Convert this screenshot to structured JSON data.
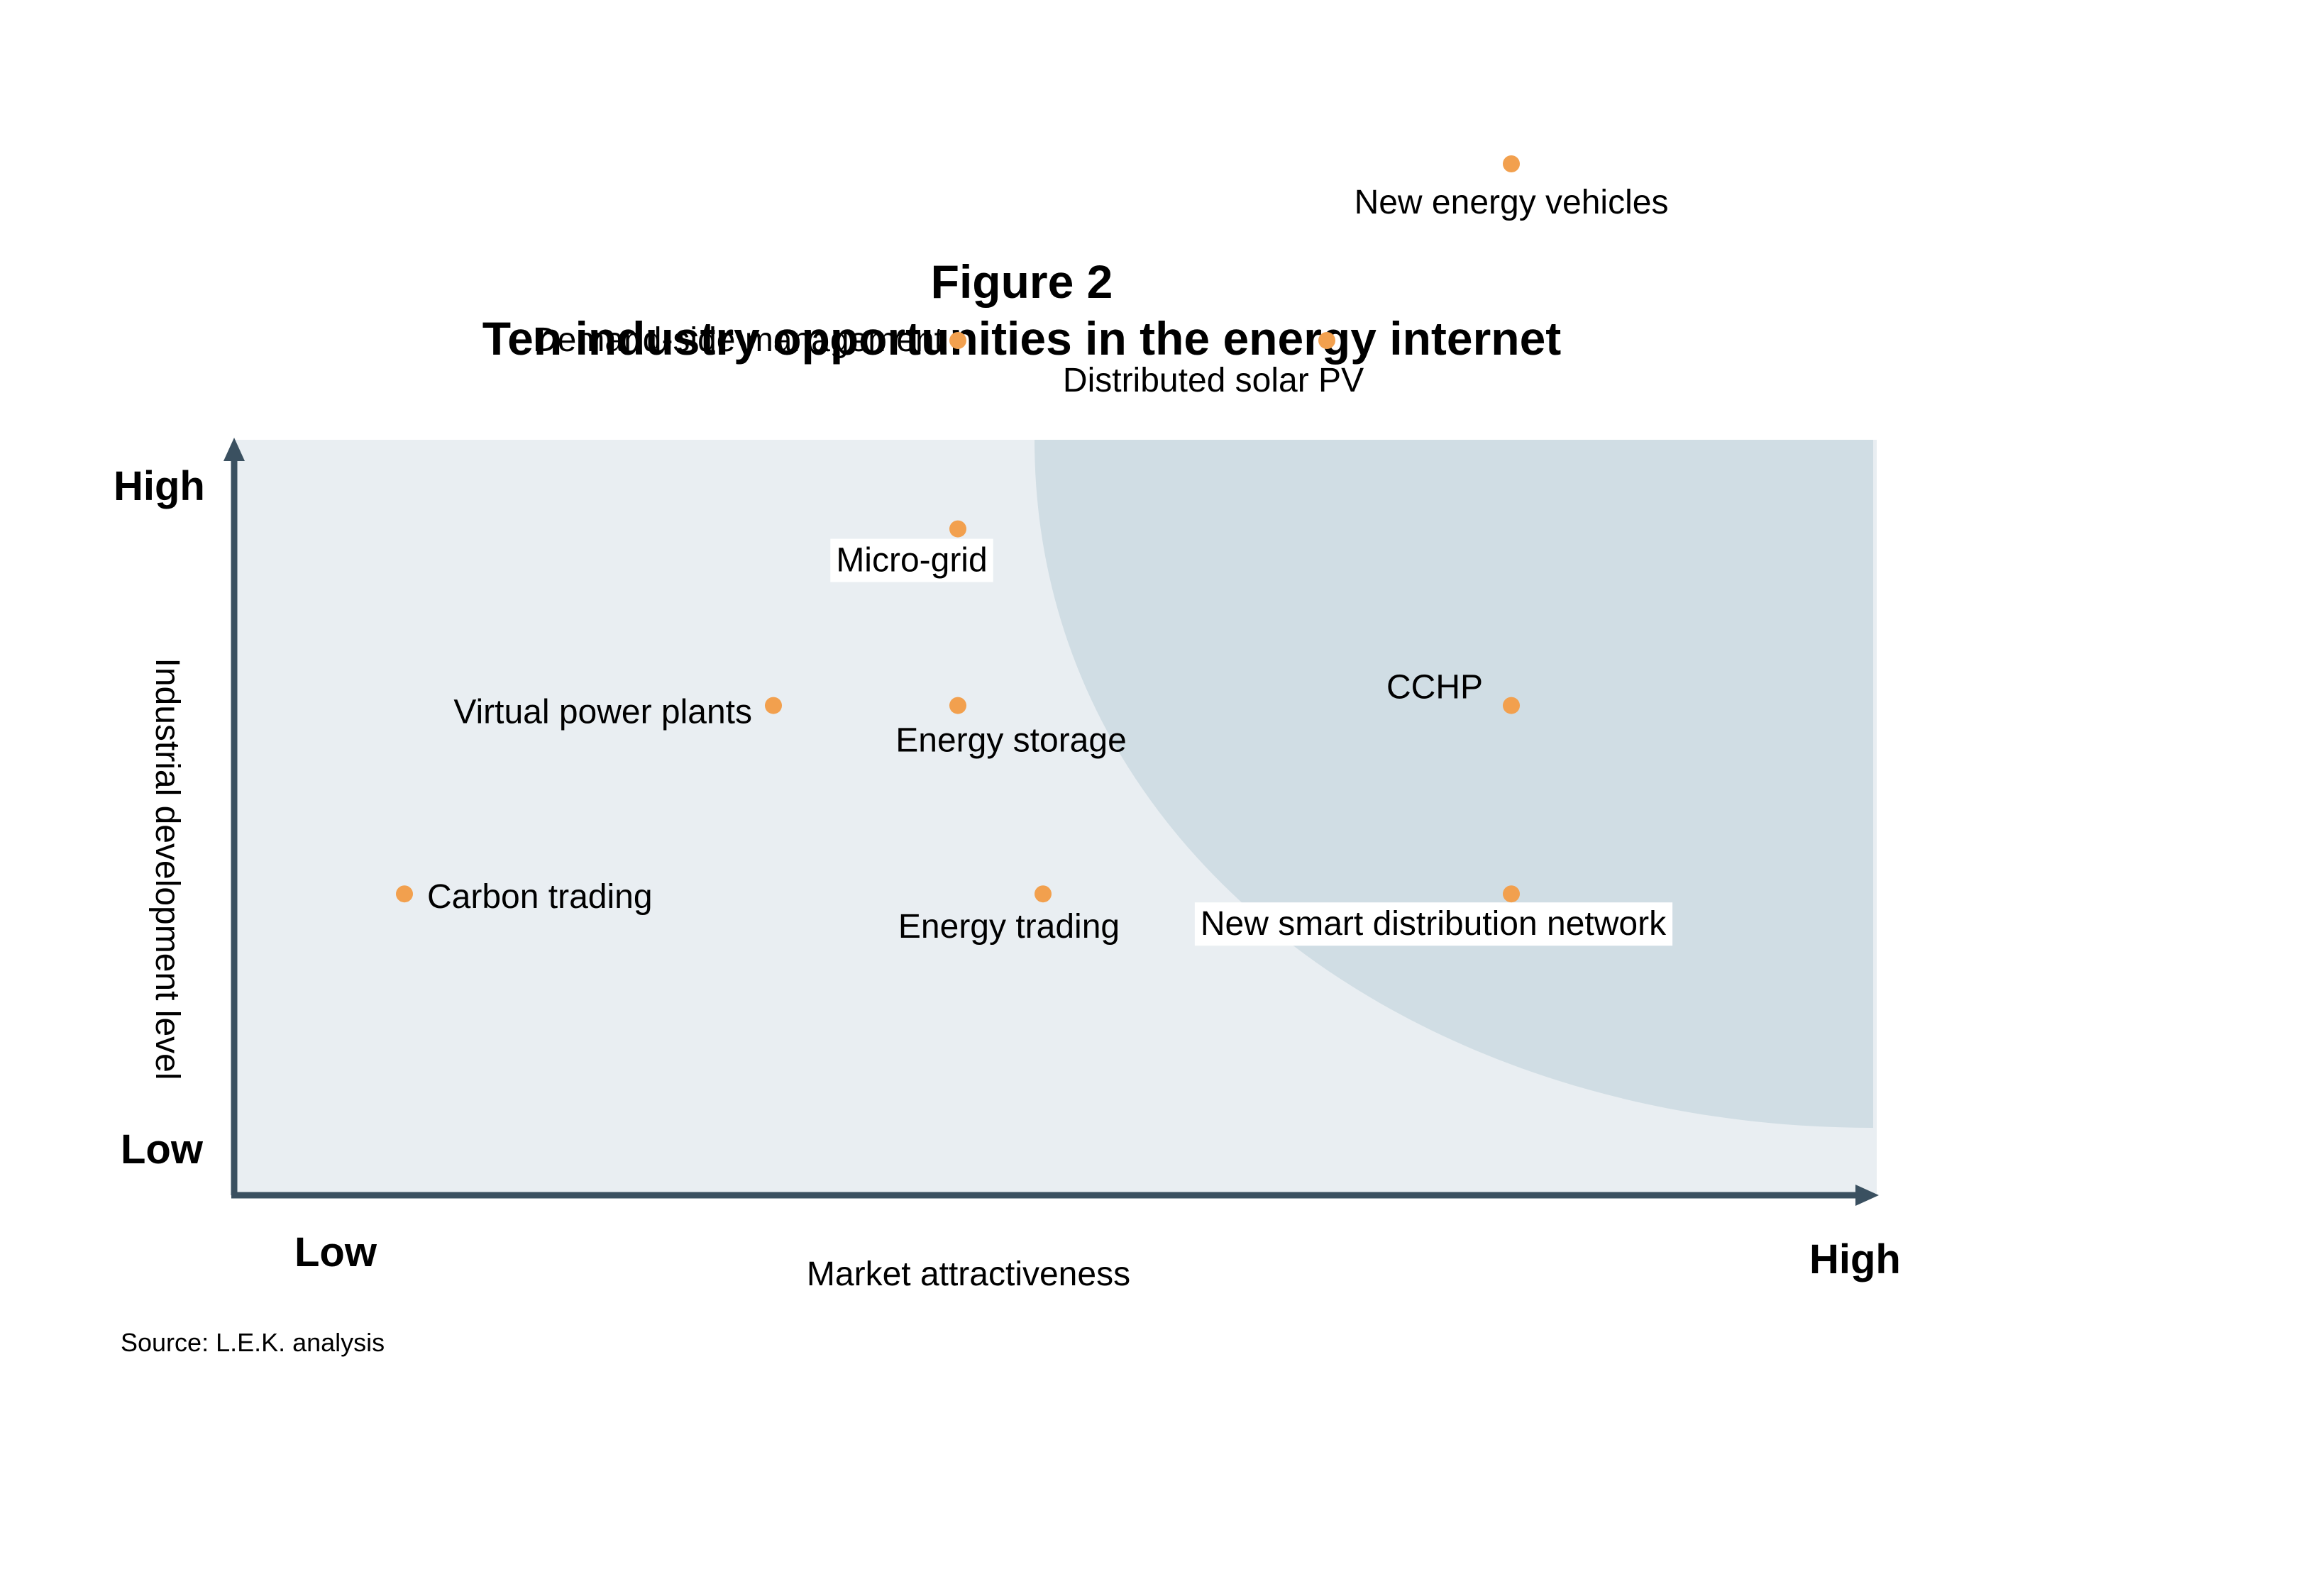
{
  "chart_data": {
    "type": "scatter",
    "title": "Figure 2",
    "subtitle": "Ten industry opportunities in the energy internet",
    "xlabel": "Market attractiveness",
    "ylabel": "Industrial development level",
    "x_axis_ends": {
      "low": "Low",
      "high": "High"
    },
    "y_axis_ends": {
      "low": "Low",
      "high": "High"
    },
    "xlim": [
      0,
      10
    ],
    "ylim": [
      0,
      10
    ],
    "grid": false,
    "source": "Source: L.E.K. analysis",
    "colors": {
      "point": "#F2A04E",
      "plot_background": "#E9EEF2",
      "highlight_region": "#D0DDE4",
      "axis": "#3A5060"
    },
    "points": [
      {
        "label": "New energy vehicles",
        "x": 9.0,
        "y": 9.0
      },
      {
        "label": "Demand-side management",
        "x": 5.1,
        "y": 7.5
      },
      {
        "label": "Distributed solar PV",
        "x": 7.7,
        "y": 7.5
      },
      {
        "label": "Micro-grid",
        "x": 5.1,
        "y": 5.9
      },
      {
        "label": "Virtual power plants",
        "x": 3.8,
        "y": 4.4
      },
      {
        "label": "Energy storage",
        "x": 5.1,
        "y": 4.4
      },
      {
        "label": "CCHP",
        "x": 9.0,
        "y": 4.4
      },
      {
        "label": "Carbon trading",
        "x": 1.2,
        "y": 2.8
      },
      {
        "label": "Energy trading",
        "x": 5.7,
        "y": 2.8
      },
      {
        "label": "New smart distribution network",
        "x": 9.0,
        "y": 2.8
      }
    ]
  }
}
